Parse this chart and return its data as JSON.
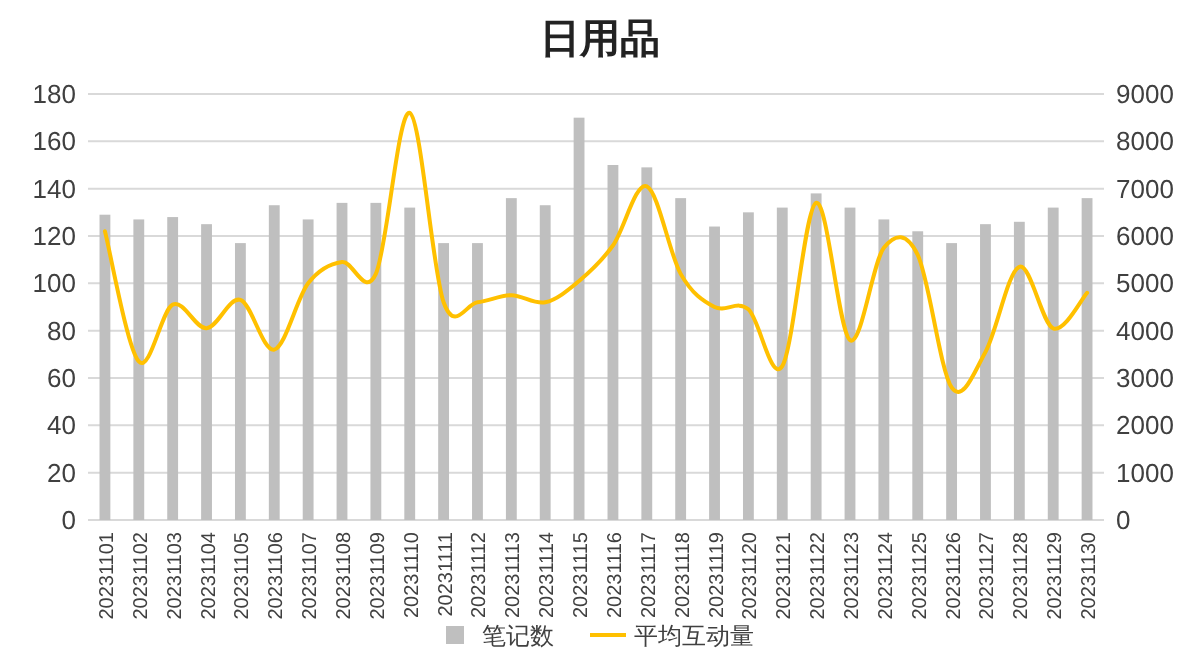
{
  "chart_data": {
    "type": "bar",
    "title": "日用品",
    "categories": [
      "20231101",
      "20231102",
      "20231103",
      "20231104",
      "20231105",
      "20231106",
      "20231107",
      "20231108",
      "20231109",
      "20231110",
      "20231111",
      "20231112",
      "20231113",
      "20231114",
      "20231115",
      "20231116",
      "20231117",
      "20231118",
      "20231119",
      "20231120",
      "20231121",
      "20231122",
      "20231123",
      "20231124",
      "20231125",
      "20231126",
      "20231127",
      "20231128",
      "20231129",
      "20231130"
    ],
    "series": [
      {
        "name": "笔记数",
        "color": "#bfbfbf",
        "values": [
          129,
          127,
          128,
          125,
          117,
          133,
          127,
          134,
          134,
          132,
          117,
          117,
          136,
          133,
          170,
          150,
          149,
          136,
          124,
          130,
          132,
          138,
          132,
          127,
          122,
          117,
          125,
          126,
          132,
          136
        ]
      },
      {
        "name": "平均互动量",
        "type": "line",
        "axis": "y2",
        "color": "#ffc000",
        "values": [
          6100,
          3350,
          4550,
          4050,
          4650,
          3600,
          5000,
          5450,
          5200,
          8600,
          4600,
          4600,
          4750,
          4600,
          5050,
          5800,
          7050,
          5200,
          4500,
          4450,
          3250,
          6700,
          3800,
          5750,
          5600,
          2800,
          3550,
          5350,
          4050,
          4800
        ]
      }
    ],
    "ylim": [
      0,
      180
    ],
    "yticks": [
      0,
      20,
      40,
      60,
      80,
      100,
      120,
      140,
      160,
      180
    ],
    "y2lim": [
      0,
      9000
    ],
    "y2ticks": [
      0,
      1000,
      2000,
      3000,
      4000,
      5000,
      6000,
      7000,
      8000,
      9000
    ],
    "grid": "y",
    "legend": "bottom"
  }
}
